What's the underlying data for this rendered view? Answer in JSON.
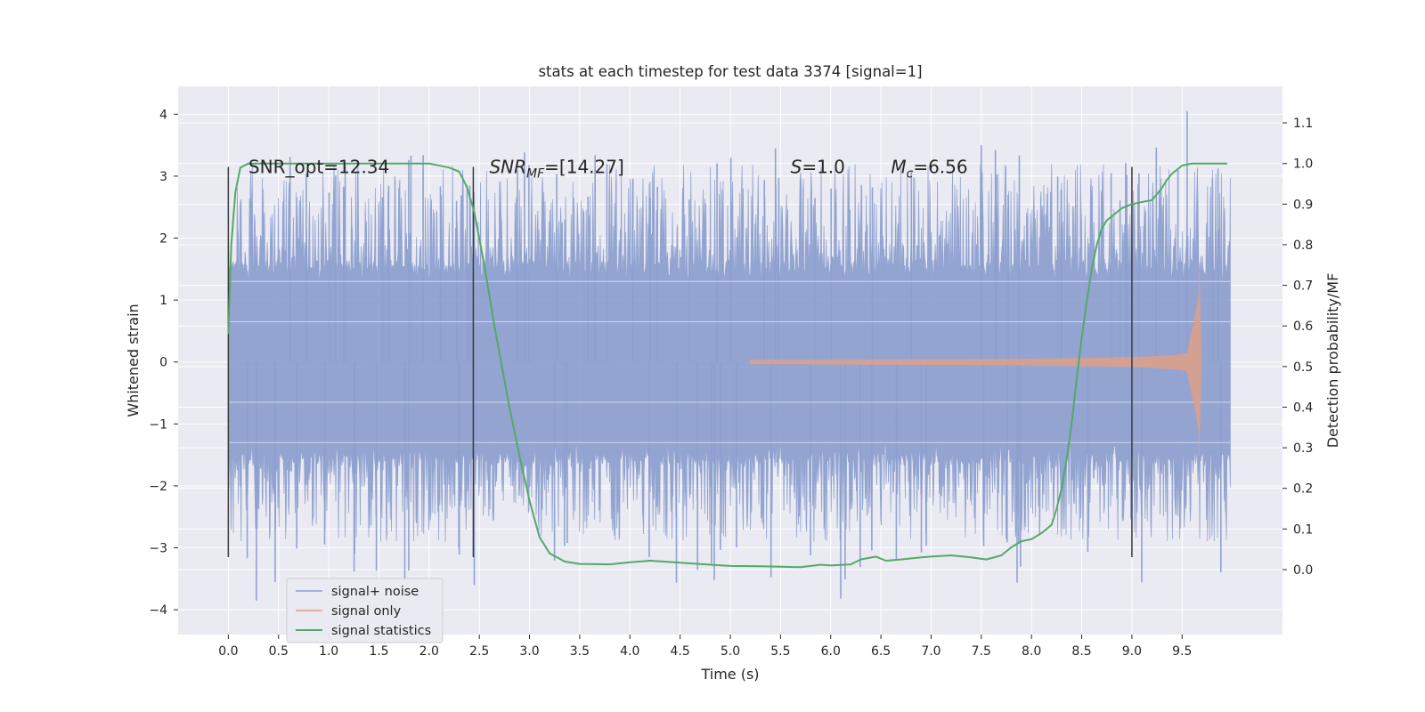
{
  "chart_data": {
    "type": "line",
    "title": "stats at each timestep for test data 3374 [signal=1]",
    "xlabel": "Time (s)",
    "ylabel": "Whitened strain",
    "y2label": "Detection probability/MF",
    "xlim": [
      -0.5,
      10.5
    ],
    "ylim": [
      -4.4,
      4.45
    ],
    "y2lim": [
      -0.16,
      1.19
    ],
    "xticks": [
      "0.0",
      "0.5",
      "1.0",
      "1.5",
      "2.0",
      "2.5",
      "3.0",
      "3.5",
      "4.0",
      "4.5",
      "5.0",
      "5.5",
      "6.0",
      "6.5",
      "7.0",
      "7.5",
      "8.0",
      "8.5",
      "9.0",
      "9.5"
    ],
    "yticks": [
      "−4",
      "−3",
      "−2",
      "−1",
      "0",
      "1",
      "2",
      "3",
      "4"
    ],
    "y2ticks": [
      "0.0",
      "0.1",
      "0.2",
      "0.3",
      "0.4",
      "0.5",
      "0.6",
      "0.7",
      "0.8",
      "0.9",
      "1.0",
      "1.1"
    ],
    "grid": true,
    "legend_position": "lower-left",
    "series": [
      {
        "name": "signal+ noise",
        "color": "#8c9fcf",
        "kind": "noise",
        "x_range": [
          0.0,
          9.98
        ],
        "core_amplitude": 1.3,
        "typical_peak": 2.4,
        "max_peak": 4.05,
        "min_peak": -3.85
      },
      {
        "name": "signal only",
        "color": "#e0a088",
        "kind": "chirp",
        "x_start": 5.2,
        "x_merger": 9.67,
        "peak_amplitude": 1.6
      },
      {
        "name": "signal statistics",
        "color": "#55a868",
        "kind": "probability",
        "axis": "right",
        "x": [
          0.0,
          0.03,
          0.07,
          0.12,
          0.2,
          0.4,
          1.0,
          2.0,
          2.2,
          2.3,
          2.38,
          2.45,
          2.55,
          2.65,
          2.8,
          2.9,
          3.0,
          3.1,
          3.2,
          3.35,
          3.5,
          3.8,
          4.0,
          4.2,
          4.5,
          4.8,
          5.0,
          5.3,
          5.5,
          5.7,
          5.9,
          6.0,
          6.2,
          6.3,
          6.45,
          6.55,
          6.7,
          6.9,
          7.0,
          7.2,
          7.4,
          7.55,
          7.7,
          7.8,
          7.9,
          8.0,
          8.1,
          8.2,
          8.25,
          8.3,
          8.35,
          8.4,
          8.45,
          8.5,
          8.55,
          8.6,
          8.65,
          8.7,
          8.75,
          8.8,
          8.9,
          9.0,
          9.1,
          9.2,
          9.3,
          9.35,
          9.4,
          9.5,
          9.6,
          9.7,
          9.9,
          9.95
        ],
        "y": [
          0.58,
          0.8,
          0.93,
          0.99,
          1.0,
          1.0,
          1.0,
          1.0,
          0.99,
          0.98,
          0.94,
          0.88,
          0.75,
          0.6,
          0.4,
          0.28,
          0.17,
          0.08,
          0.04,
          0.02,
          0.014,
          0.013,
          0.018,
          0.022,
          0.017,
          0.012,
          0.009,
          0.008,
          0.007,
          0.006,
          0.012,
          0.01,
          0.013,
          0.025,
          0.032,
          0.022,
          0.025,
          0.03,
          0.032,
          0.035,
          0.03,
          0.025,
          0.035,
          0.055,
          0.07,
          0.075,
          0.09,
          0.11,
          0.15,
          0.2,
          0.27,
          0.36,
          0.47,
          0.57,
          0.66,
          0.74,
          0.8,
          0.84,
          0.86,
          0.87,
          0.89,
          0.9,
          0.905,
          0.91,
          0.94,
          0.96,
          0.975,
          0.995,
          1.0,
          1.0,
          1.0,
          1.0
        ]
      }
    ],
    "vlines": [
      0.0,
      2.44,
      9.0
    ],
    "annotations": [
      {
        "text": "SNR_opt=12.34",
        "x": 0.2,
        "y": 3.15
      },
      {
        "text": "SNR",
        "sub": "MF",
        "rest": "=[14.27]",
        "italic": true,
        "x": 2.6,
        "y": 3.15
      },
      {
        "text": "S",
        "rest": "=1.0",
        "italic": true,
        "x": 5.6,
        "y": 3.15
      },
      {
        "text": "M",
        "sub": "c",
        "rest": "=6.56",
        "italic": true,
        "x": 6.6,
        "y": 3.15
      }
    ]
  }
}
